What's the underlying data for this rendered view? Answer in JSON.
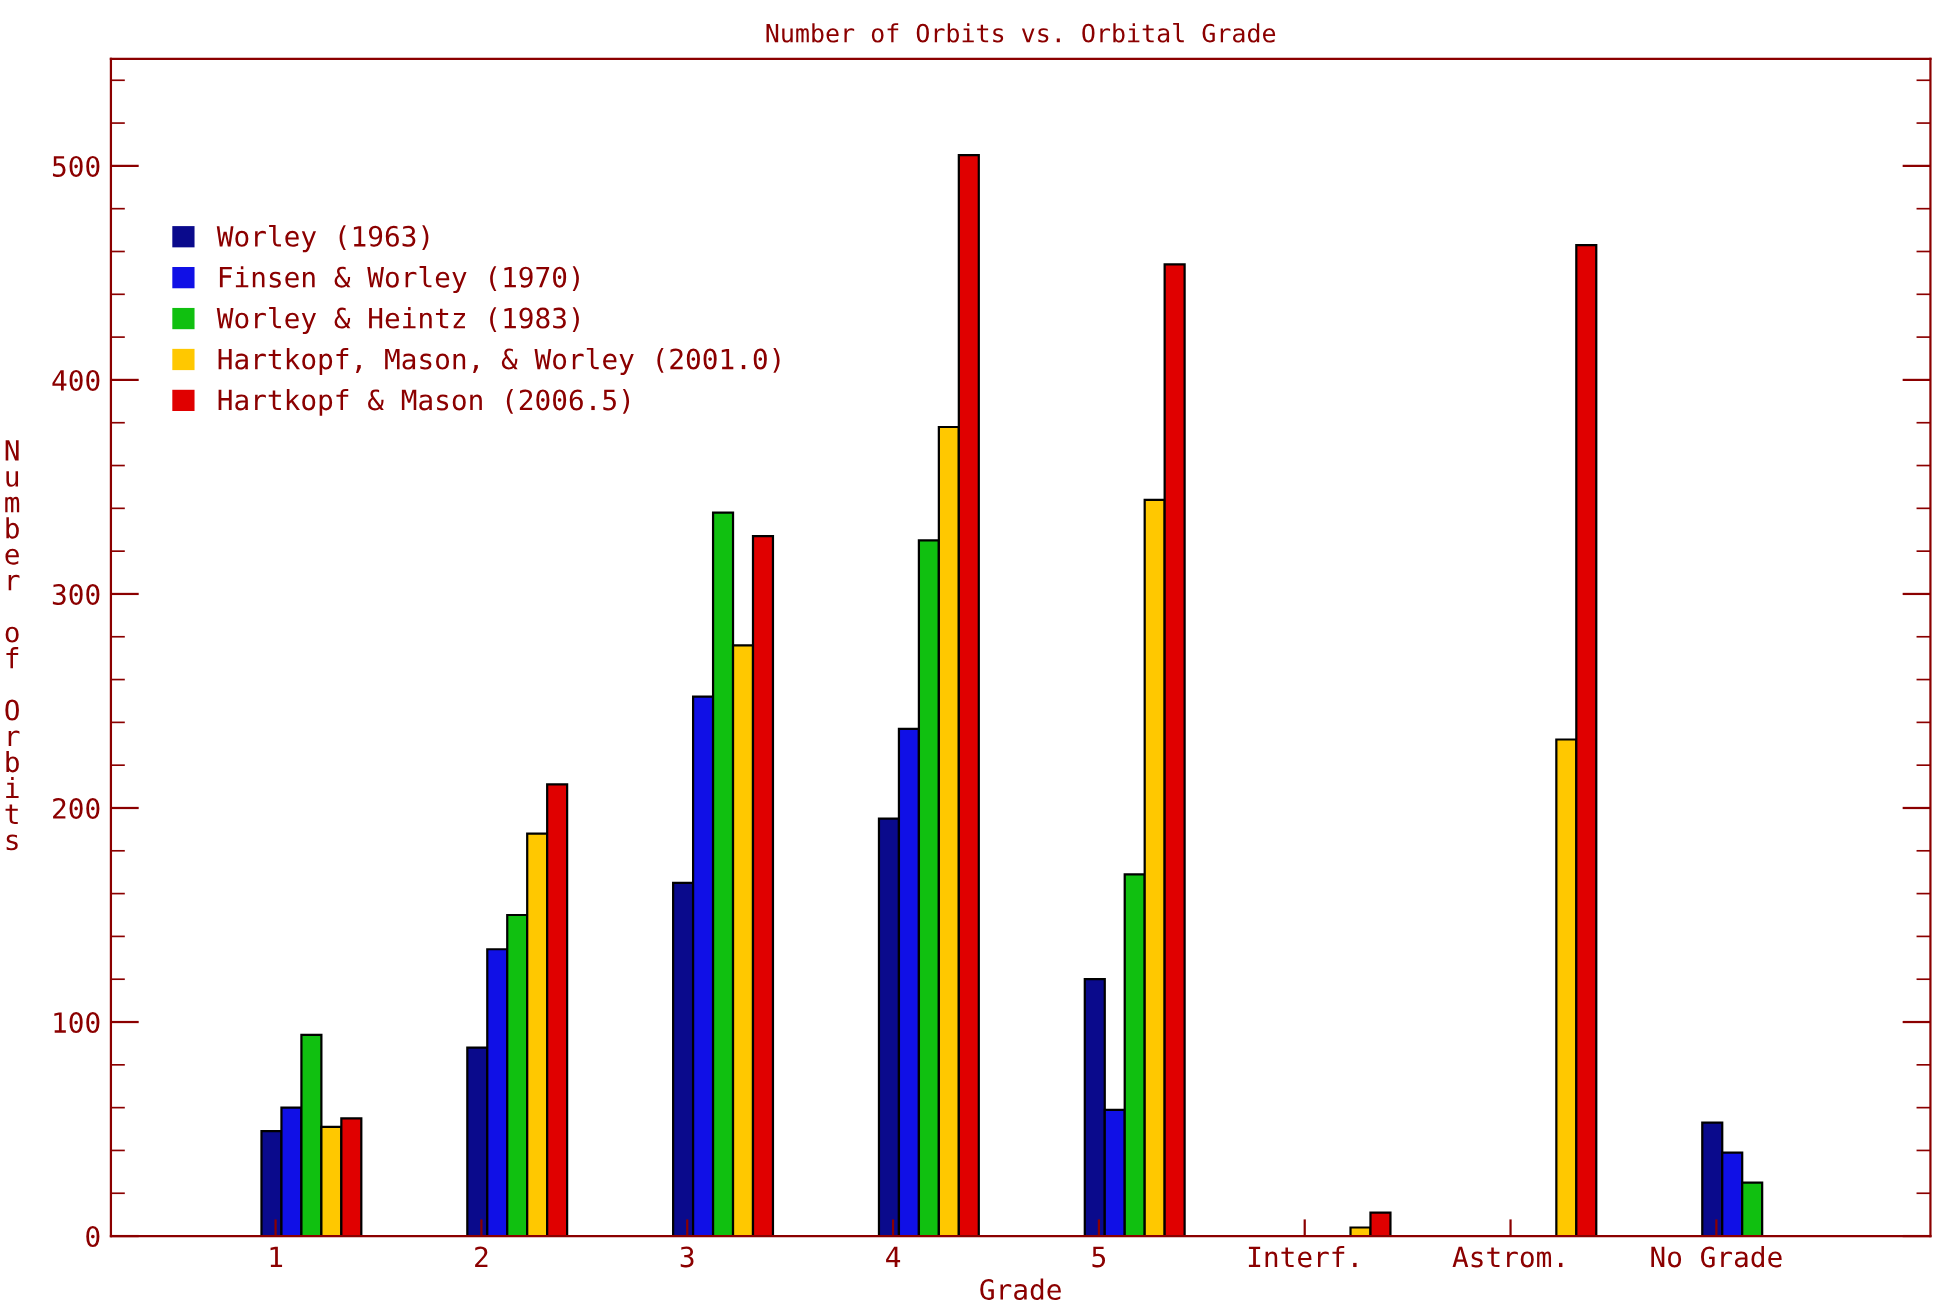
{
  "chart_data": {
    "type": "bar",
    "title": "Number of Orbits vs. Orbital Grade",
    "xlabel": "Grade",
    "ylabel": "Number of Orbits",
    "categories": [
      "1",
      "2",
      "3",
      "4",
      "5",
      "Interf.",
      "Astrom.",
      "No Grade"
    ],
    "series": [
      {
        "name": "Worley (1963)",
        "color": "#0a0a8c",
        "values": [
          49,
          88,
          165,
          195,
          120,
          null,
          null,
          53
        ]
      },
      {
        "name": "Finsen & Worley (1970)",
        "color": "#1010e6",
        "values": [
          60,
          134,
          252,
          237,
          59,
          null,
          null,
          39
        ]
      },
      {
        "name": "Worley & Heintz (1983)",
        "color": "#10c010",
        "values": [
          94,
          150,
          338,
          325,
          169,
          null,
          null,
          25
        ]
      },
      {
        "name": "Hartkopf, Mason, & Worley (2001.0)",
        "color": "#ffc800",
        "values": [
          51,
          188,
          276,
          378,
          344,
          4,
          232,
          null
        ]
      },
      {
        "name": "Hartkopf & Mason (2006.5)",
        "color": "#e00000",
        "values": [
          55,
          211,
          327,
          505,
          454,
          11,
          463,
          null
        ]
      }
    ],
    "ylim": [
      0,
      550
    ],
    "yticks": [
      0,
      100,
      200,
      300,
      400,
      500
    ],
    "legend": "top left",
    "grid": false
  }
}
